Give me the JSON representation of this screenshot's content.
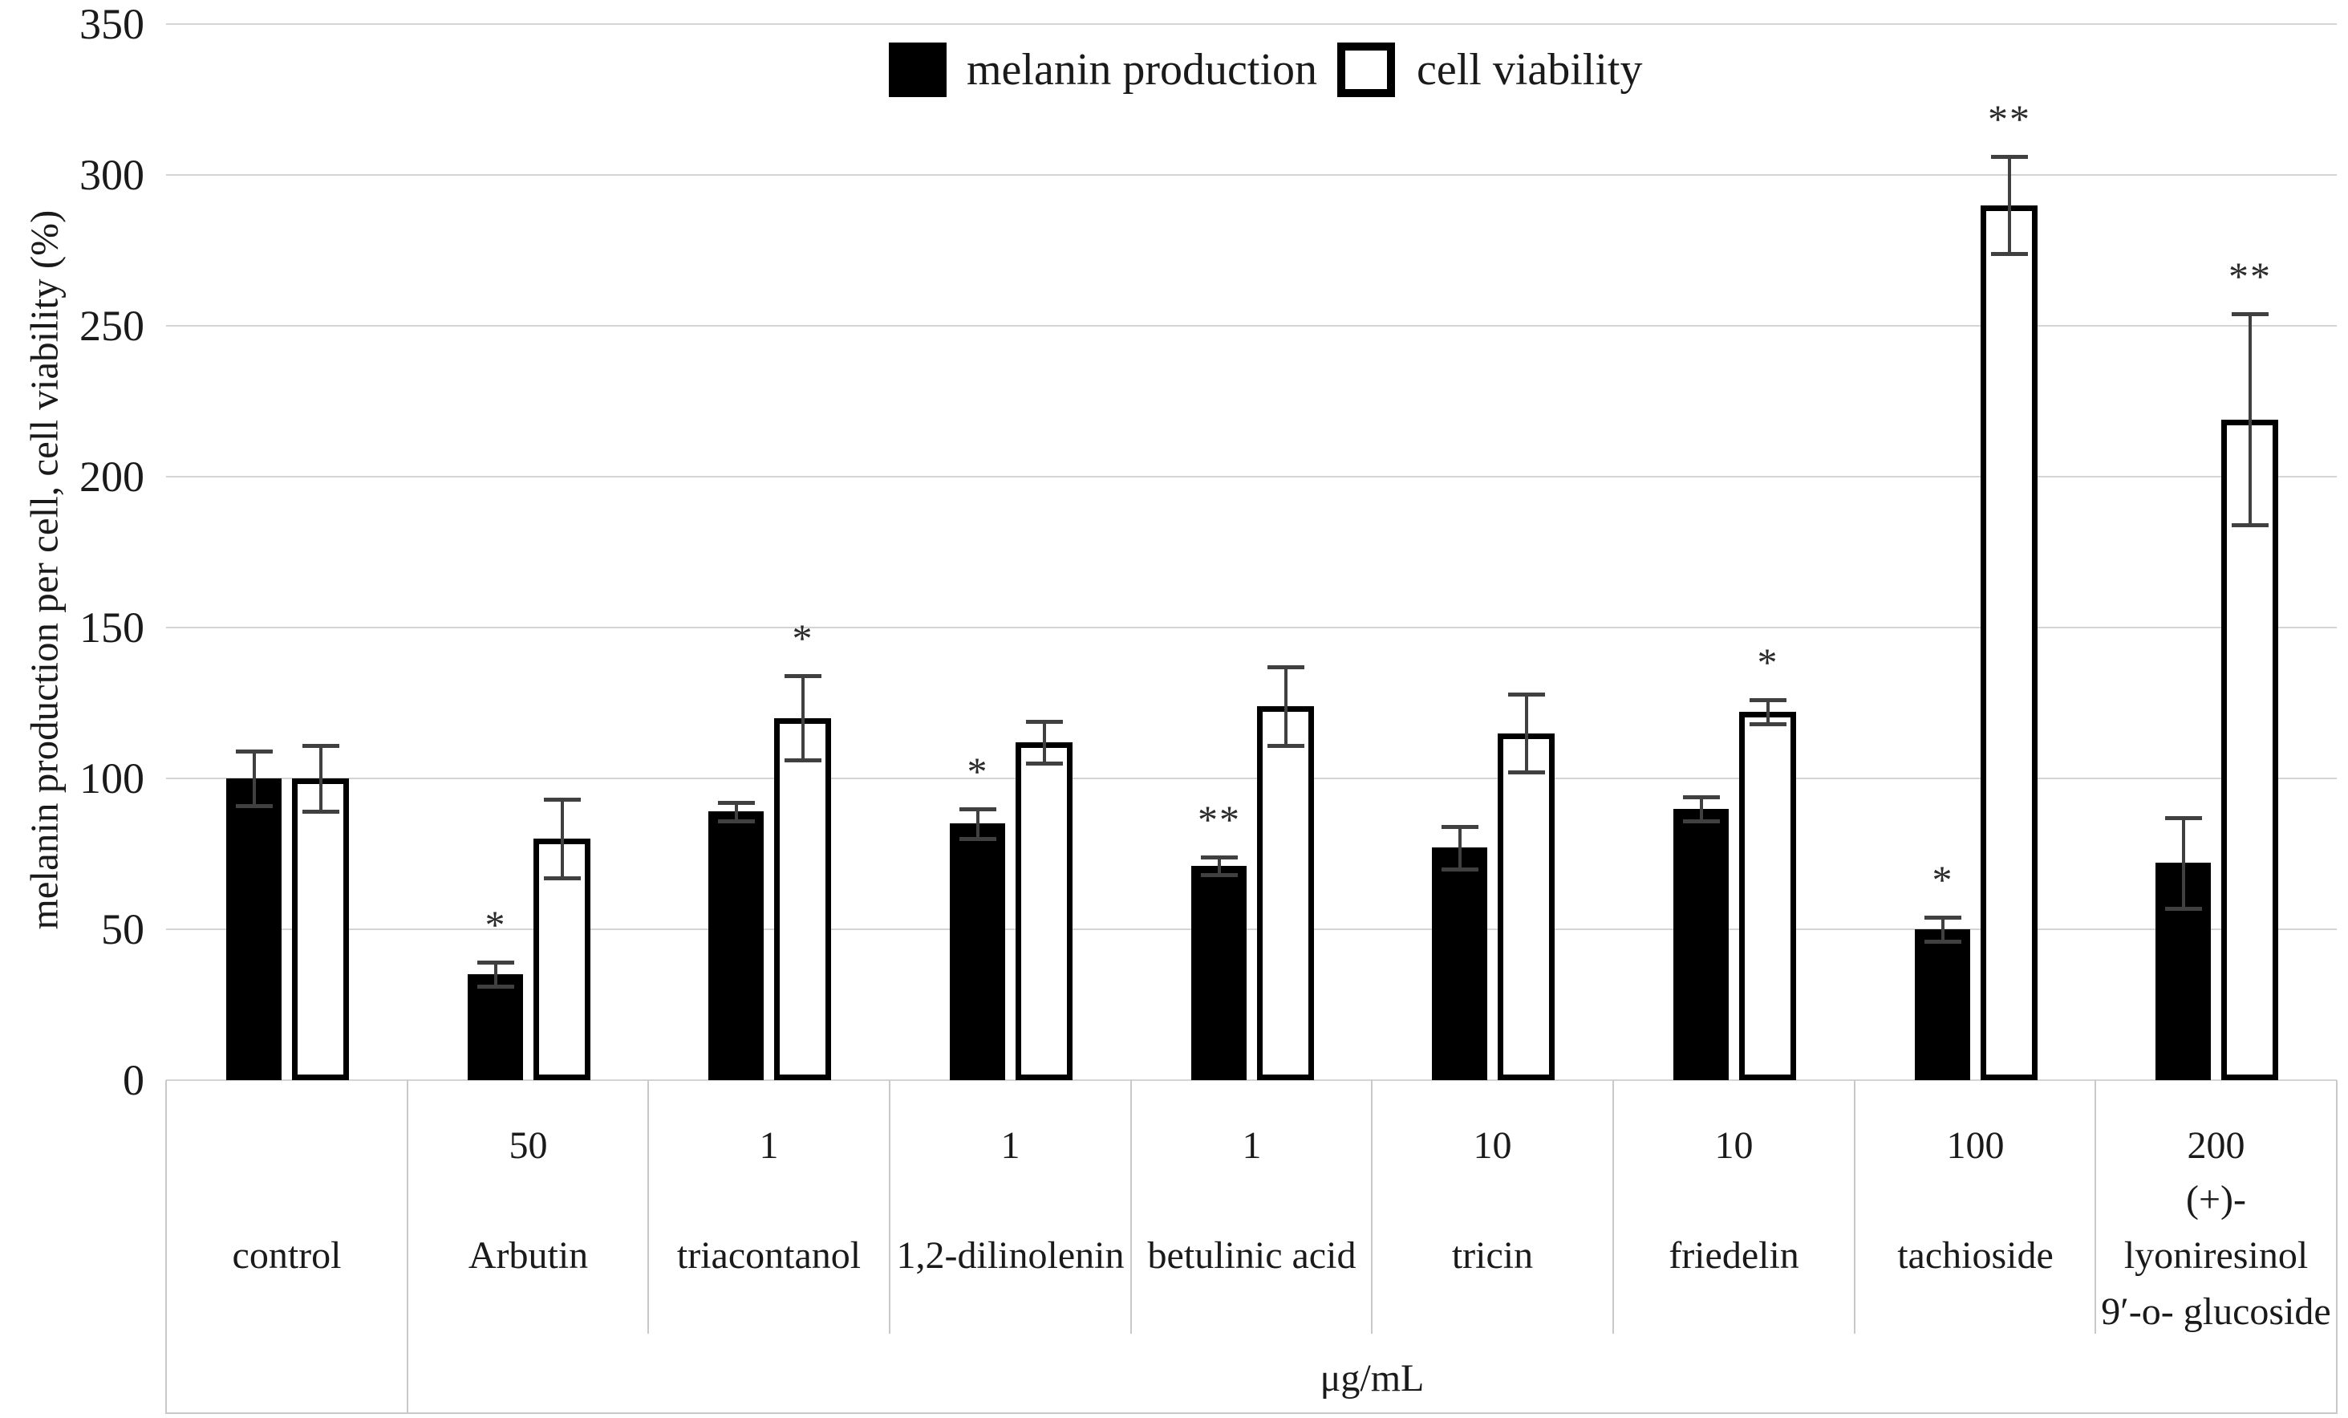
{
  "chart_data": {
    "type": "bar",
    "title": "",
    "ylabel": "melanin production per cell, cell viability (%)",
    "xlabel": "μg/mL",
    "ylim": [
      0,
      350
    ],
    "ytick_step": 50,
    "yticks": [
      0,
      50,
      100,
      150,
      200,
      250,
      300,
      350
    ],
    "grid": true,
    "legend_position": "top-center",
    "categories": [
      "control",
      "Arbutin",
      "triacontanol",
      "1,2-dilinolenin",
      "betulinic acid",
      "tricin",
      "friedelin",
      "tachioside",
      "(+)- lyoniresinol 9′-o- glucoside"
    ],
    "category_lines": [
      [
        "control"
      ],
      [
        "Arbutin"
      ],
      [
        "triacontanol"
      ],
      [
        "1,2-dilinolenin"
      ],
      [
        "betulinic acid"
      ],
      [
        "tricin"
      ],
      [
        "friedelin"
      ],
      [
        "tachioside"
      ],
      [
        "(+)-",
        "lyoniresinol",
        "9′-o- glucoside"
      ]
    ],
    "doses": [
      "",
      "50",
      "1",
      "1",
      "1",
      "10",
      "10",
      "100",
      "200"
    ],
    "series": [
      {
        "name": "melanin production",
        "fill": "#000000",
        "values": [
          100,
          35,
          89,
          85,
          71,
          77,
          90,
          50,
          72
        ],
        "errors": [
          9,
          4,
          3,
          5,
          3,
          7,
          4,
          4,
          15
        ],
        "significance": [
          "",
          "*",
          "",
          "*",
          "**",
          "",
          "",
          "*",
          ""
        ]
      },
      {
        "name": "cell viability",
        "fill": "#ffffff",
        "stroke": "#000000",
        "values": [
          100,
          80,
          120,
          112,
          124,
          115,
          122,
          290,
          219
        ],
        "errors": [
          11,
          13,
          14,
          7,
          13,
          13,
          4,
          16,
          35
        ],
        "significance": [
          "",
          "",
          "*",
          "",
          "",
          "",
          "*",
          "**",
          "**"
        ]
      }
    ]
  }
}
